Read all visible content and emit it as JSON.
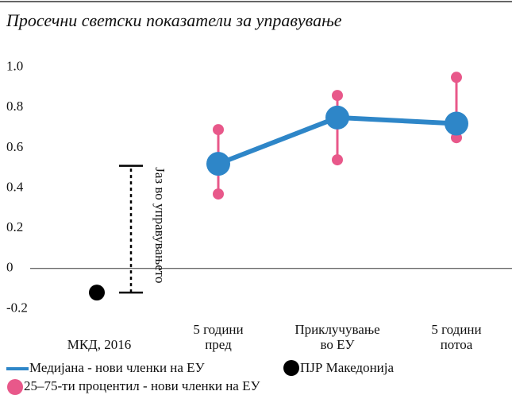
{
  "chart_data": {
    "type": "line",
    "title": "Просечни светски показатели за управување",
    "categories": [
      [
        "МКД, 2016"
      ],
      [
        "5 години",
        "пред"
      ],
      [
        "Приклучување",
        "во ЕУ"
      ],
      [
        "5 години",
        "потоа"
      ]
    ],
    "ylim": [
      -0.25,
      1.05
    ],
    "yticks": [
      -0.2,
      {
        "value": 0,
        "label": "0"
      },
      0.2,
      0.4,
      0.6,
      0.8,
      {
        "value": 1,
        "label": "1.0"
      }
    ],
    "series": [
      {
        "name": "Медијана - нови членки на ЕУ",
        "color": "#2e86c8",
        "values": [
          null,
          0.52,
          0.75,
          0.72
        ]
      },
      {
        "name": "25–75-ти процентил - нови членки на ЕУ",
        "color": "#e8588a",
        "low": [
          null,
          0.37,
          0.54,
          0.65
        ],
        "high": [
          null,
          0.69,
          0.86,
          0.95
        ]
      },
      {
        "name": "ПЈР Македонија",
        "color": "#000000",
        "values": [
          -0.12,
          null,
          null,
          null
        ]
      }
    ],
    "annotation": {
      "label": "Јаз во управувањето",
      "from": -0.12,
      "to": 0.51
    }
  }
}
